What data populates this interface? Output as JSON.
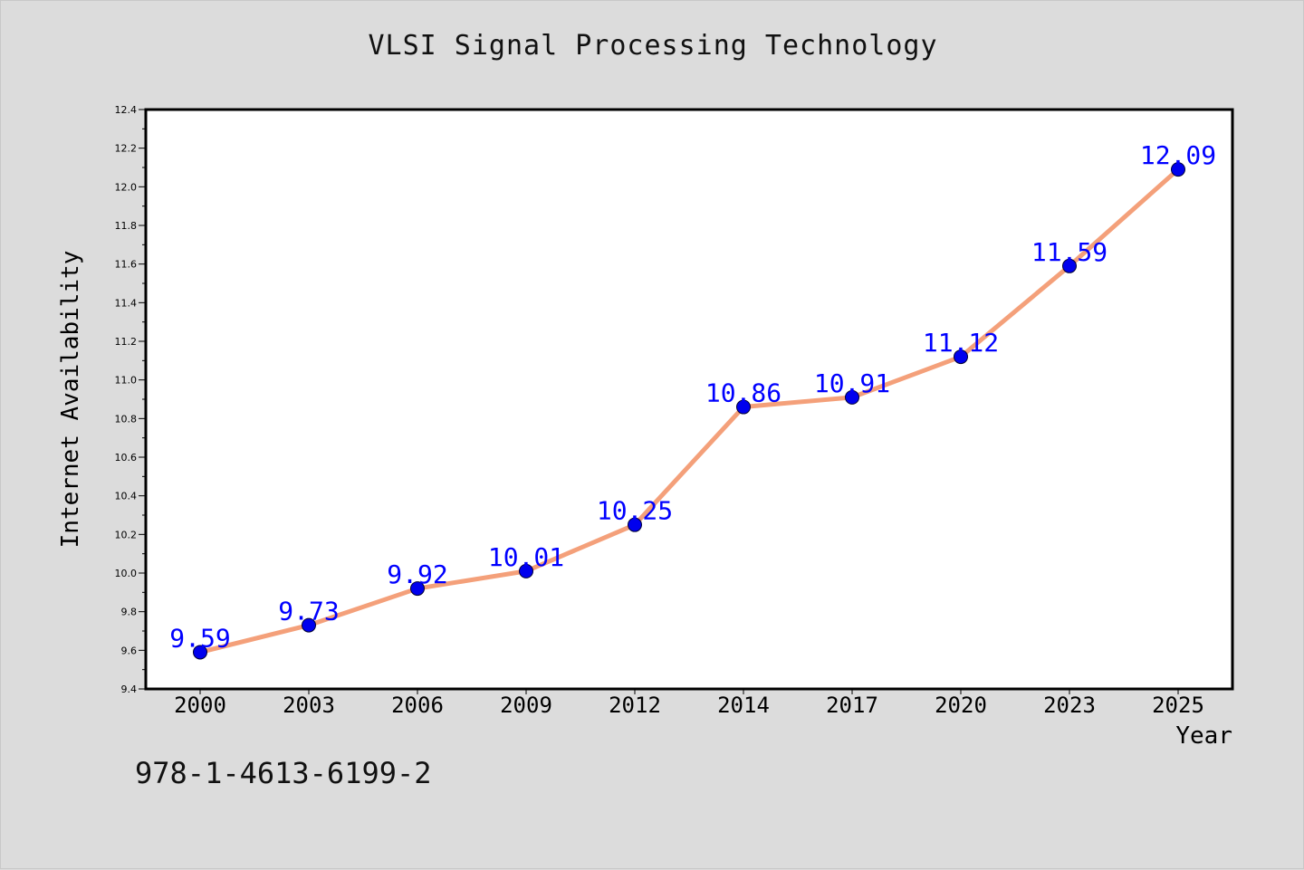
{
  "title": "VLSI Signal Processing Technology",
  "footer_text": "978-1-4613-6199-2",
  "colors": {
    "background": "#dcdcdc",
    "plot_background": "#ffffff",
    "line": "#f4a07a",
    "marker": "#0000ee",
    "data_label": "#0000ff"
  },
  "chart_data": {
    "type": "line",
    "title": "VLSI Signal Processing Technology",
    "xlabel": "Year",
    "ylabel": "Internet Availability",
    "categories": [
      "2000",
      "2003",
      "2006",
      "2009",
      "2012",
      "2014",
      "2017",
      "2020",
      "2023",
      "2025"
    ],
    "series": [
      {
        "values": [
          9.59,
          9.73,
          9.92,
          10.01,
          10.25,
          10.86,
          10.91,
          11.12,
          11.59,
          12.09
        ]
      }
    ],
    "data_labels": [
      "9.59",
      "9.73",
      "9.92",
      "10.01",
      "10.25",
      "10.86",
      "10.91",
      "11.12",
      "11.59",
      "12.09"
    ],
    "yticks": [
      "9.4",
      "9.6",
      "9.8",
      "10.0",
      "10.2",
      "10.4",
      "10.6",
      "10.8",
      "11.0",
      "11.2",
      "11.4",
      "11.6",
      "11.8",
      "12.0",
      "12.2",
      "12.4"
    ],
    "ylim": [
      9.4,
      12.4
    ],
    "grid": false,
    "legend": "none"
  }
}
